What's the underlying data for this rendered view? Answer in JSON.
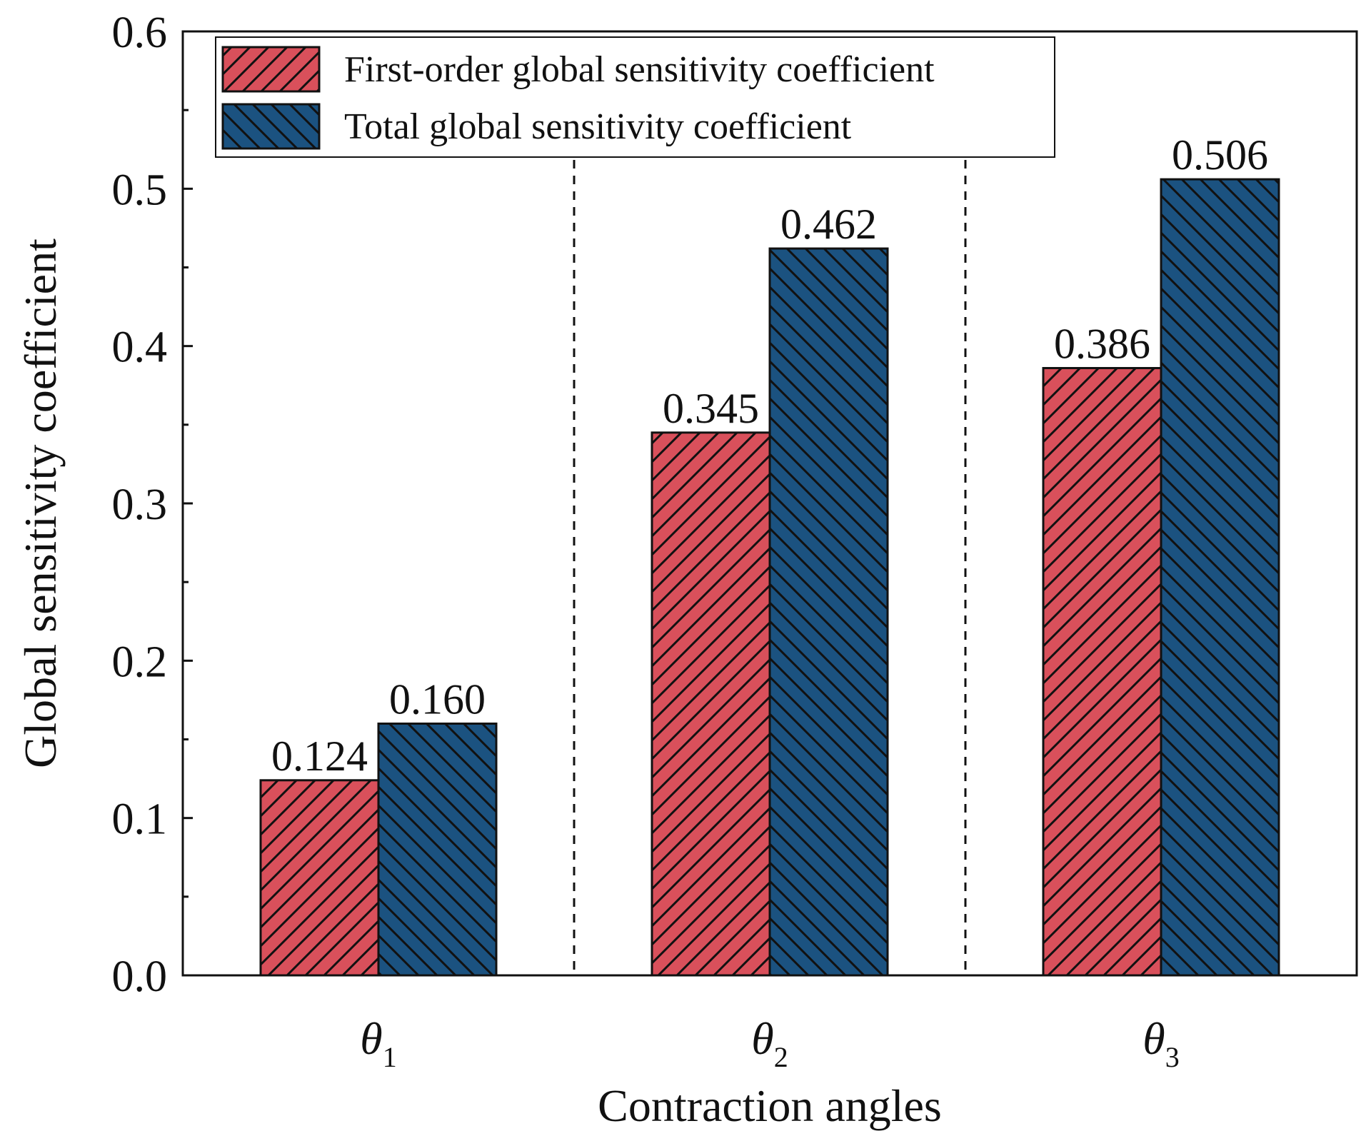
{
  "chart_data": {
    "type": "bar",
    "title": "",
    "xlabel": "Contraction angles",
    "ylabel": "Global sensitivity coefficient",
    "ylim": [
      0,
      0.6
    ],
    "yticks": [
      "0.0",
      "0.1",
      "0.2",
      "0.3",
      "0.4",
      "0.5",
      "0.6"
    ],
    "categories": [
      {
        "symbol": "θ",
        "sub": "1"
      },
      {
        "symbol": "θ",
        "sub": "2"
      },
      {
        "symbol": "θ",
        "sub": "3"
      }
    ],
    "series": [
      {
        "name": "First-order global sensitivity coefficient",
        "color": "#d9505b",
        "hatch": "forward",
        "values": [
          0.124,
          0.345,
          0.386
        ],
        "labels": [
          "0.124",
          "0.345",
          "0.386"
        ]
      },
      {
        "name": "Total global sensitivity coefficient",
        "color": "#1b5280",
        "hatch": "backward",
        "values": [
          0.16,
          0.462,
          0.506
        ],
        "labels": [
          "0.160",
          "0.462",
          "0.506"
        ]
      }
    ],
    "legend_position": "top-left",
    "group_separators": "dashed",
    "grid": false
  }
}
